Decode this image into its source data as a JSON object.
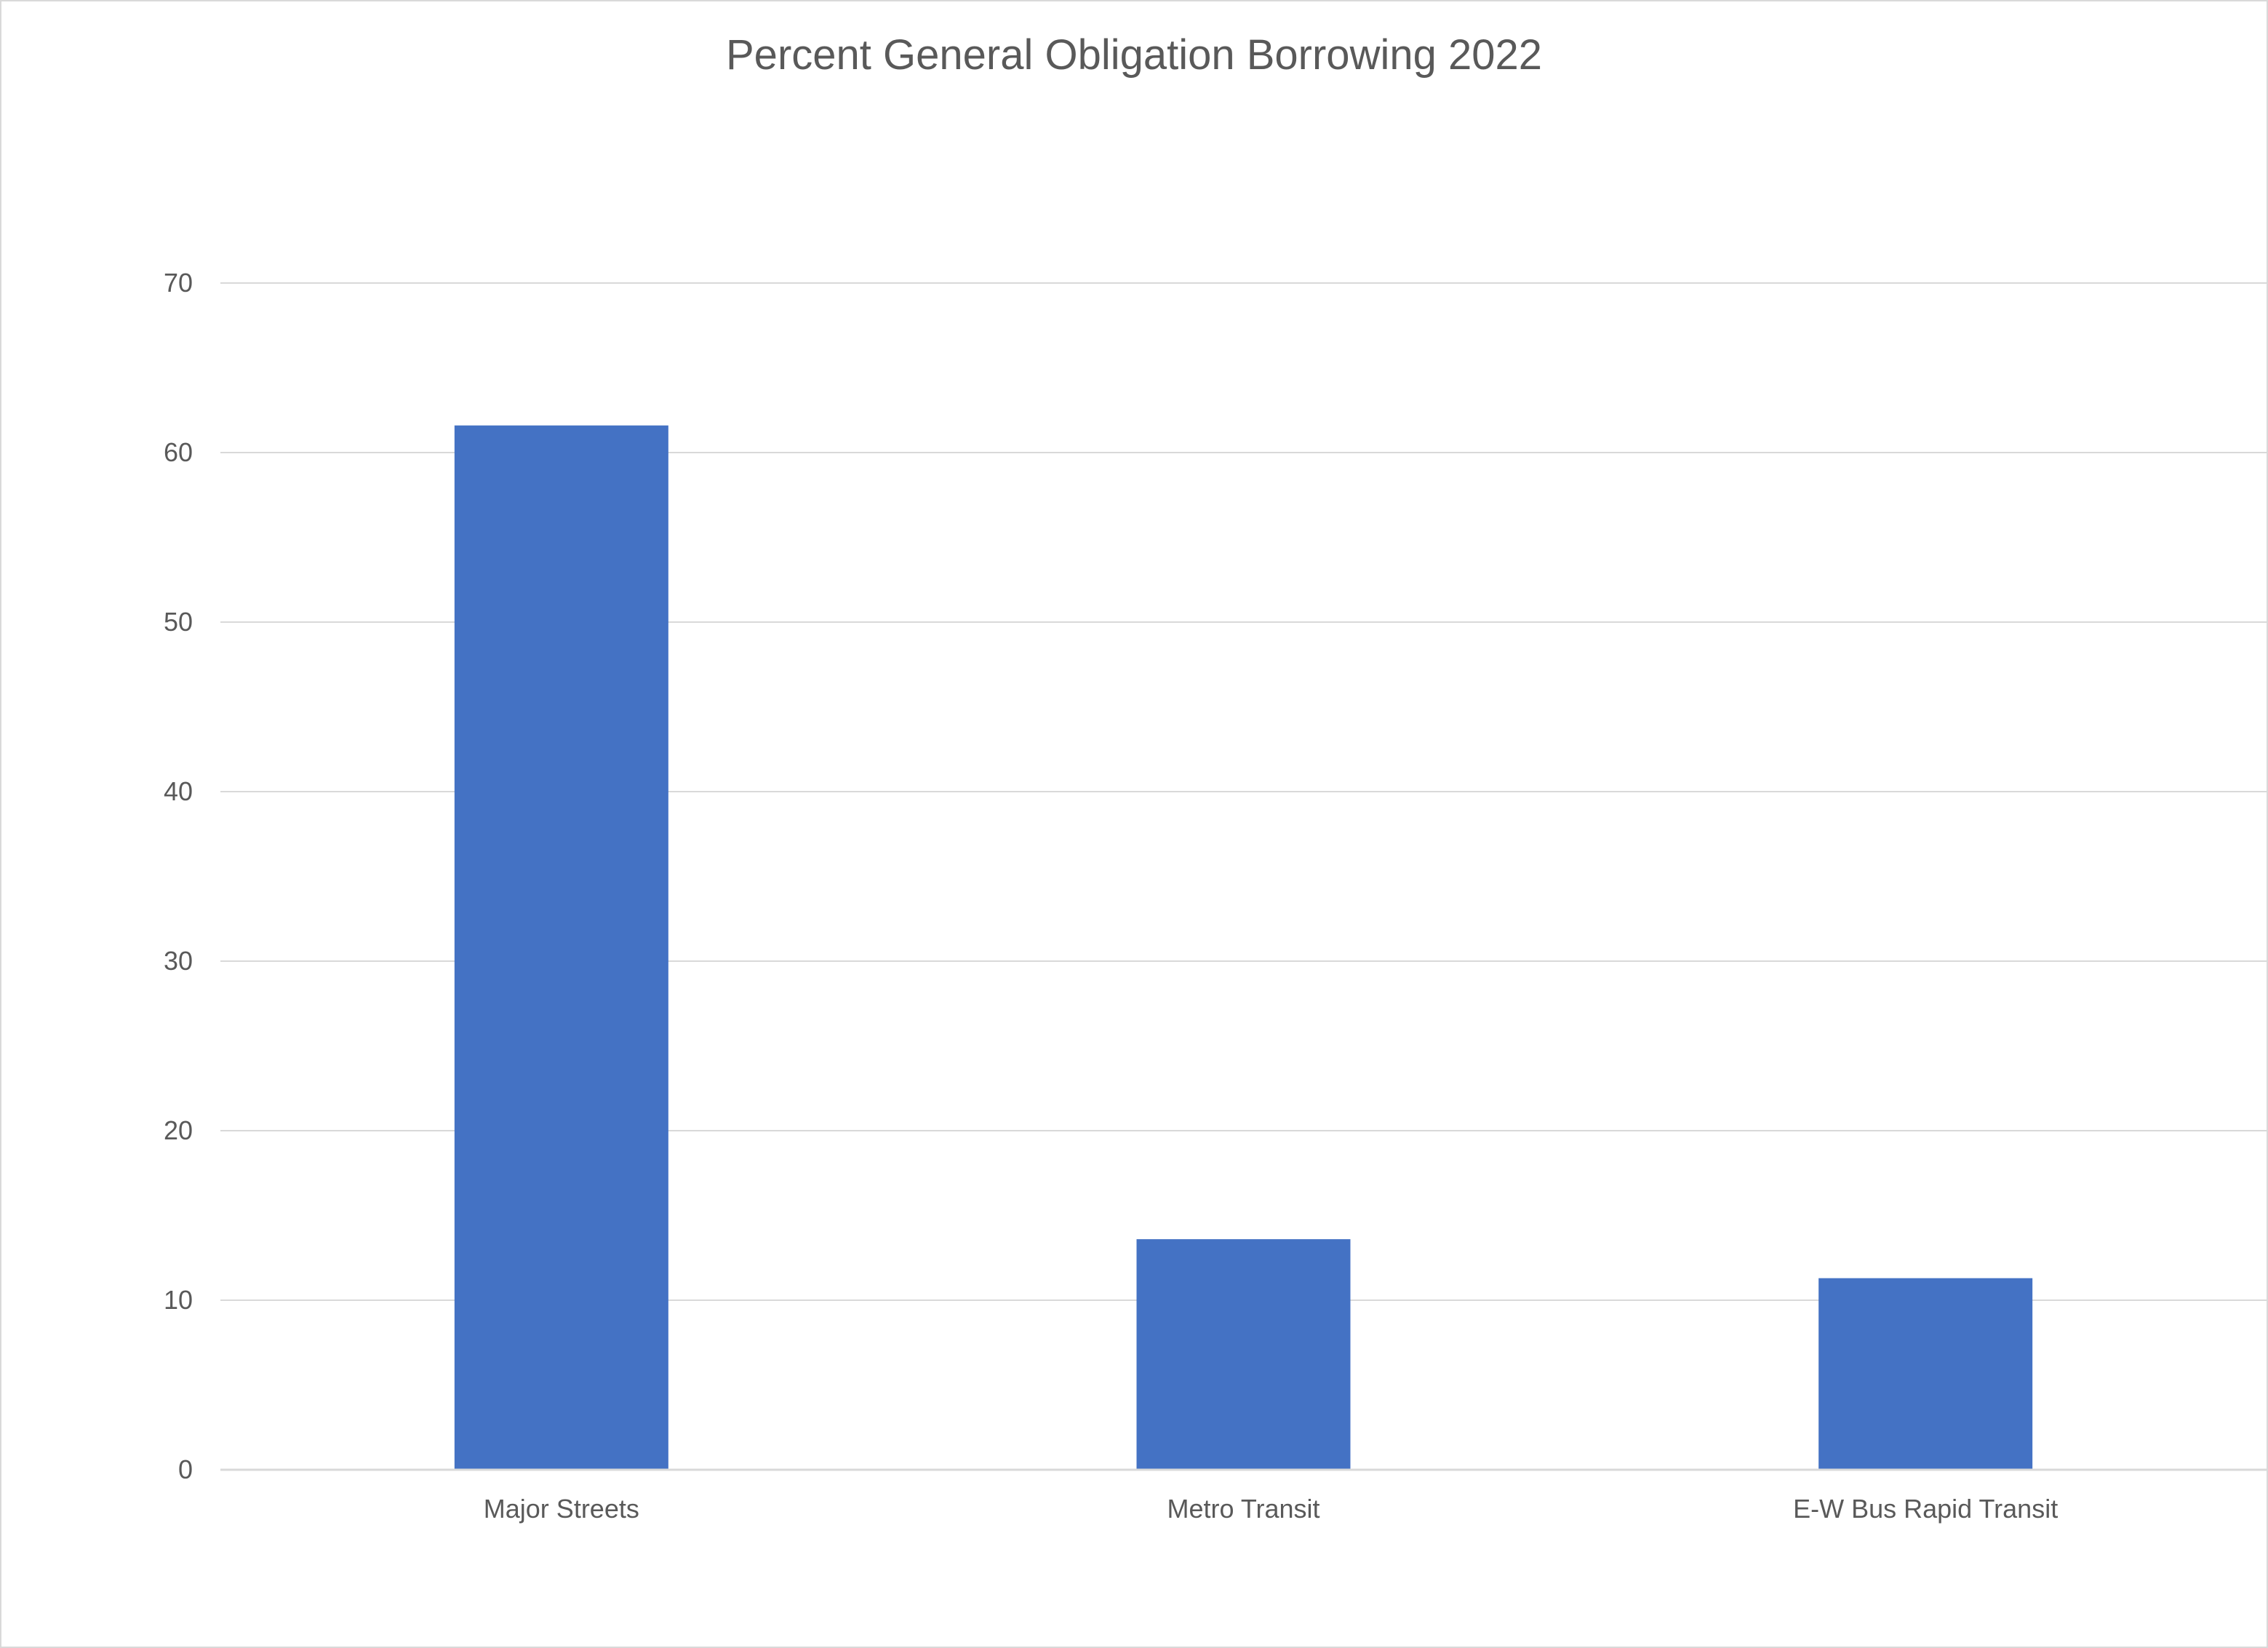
{
  "chart_data": {
    "type": "bar",
    "title": "Percent General Obligation Borrowing 2022",
    "xlabel": "",
    "ylabel": "",
    "categories": [
      "Major Streets",
      "Metro Transit",
      "E-W Bus Rapid Transit"
    ],
    "values": [
      61.6,
      13.6,
      11.3
    ],
    "ylim": [
      0,
      70
    ],
    "yticks": [
      "0",
      "10",
      "20",
      "30",
      "40",
      "50",
      "60",
      "70"
    ],
    "grid": true,
    "legend": "none",
    "colors": {
      "bar": "#4472C4",
      "gridline": "#d9d9d9",
      "axis_line": "#d9d9d9",
      "text": "#595959"
    }
  }
}
